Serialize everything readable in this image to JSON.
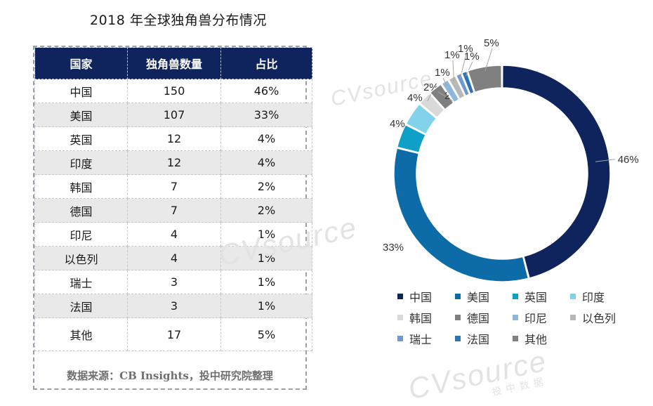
{
  "title": "2018 年全球独角兽分布情况",
  "table": {
    "headers": [
      "国家",
      "独角兽数量",
      "占比"
    ],
    "rows": [
      [
        "中国",
        "150",
        "46%"
      ],
      [
        "美国",
        "107",
        "33%"
      ],
      [
        "英国",
        "12",
        "4%"
      ],
      [
        "印度",
        "12",
        "4%"
      ],
      [
        "韩国",
        "7",
        "2%"
      ],
      [
        "德国",
        "7",
        "2%"
      ],
      [
        "印尼",
        "4",
        "1%"
      ],
      [
        "以色列",
        "4",
        "1%"
      ],
      [
        "瑞士",
        "3",
        "1%"
      ],
      [
        "法国",
        "3",
        "1%"
      ],
      [
        "其他",
        "17",
        "5%"
      ]
    ],
    "source": "数据来源：CB Insights，投中研究院整理"
  },
  "chart_data": {
    "type": "pie",
    "subtype": "donut",
    "title": "2018 年全球独角兽分布情况",
    "categories": [
      "中国",
      "美国",
      "英国",
      "印度",
      "韩国",
      "德国",
      "印尼",
      "以色列",
      "瑞士",
      "法国",
      "其他"
    ],
    "values": [
      150,
      107,
      12,
      12,
      7,
      7,
      4,
      4,
      3,
      3,
      17
    ],
    "labels": [
      "46%",
      "33%",
      "4%",
      "4%",
      "2%",
      "2%",
      "1%",
      "1%",
      "1%",
      "1%",
      "5%"
    ],
    "colors": [
      "#0f245c",
      "#0d6ba8",
      "#0fa0c8",
      "#82d2ec",
      "#d9d9d9",
      "#7f7f7f",
      "#8bb8dc",
      "#b8b8b8",
      "#6e9ad0",
      "#2e74b5",
      "#808080"
    ],
    "legend_position": "bottom"
  },
  "watermark": {
    "brand": "CVsource",
    "sub": "投中数据"
  }
}
